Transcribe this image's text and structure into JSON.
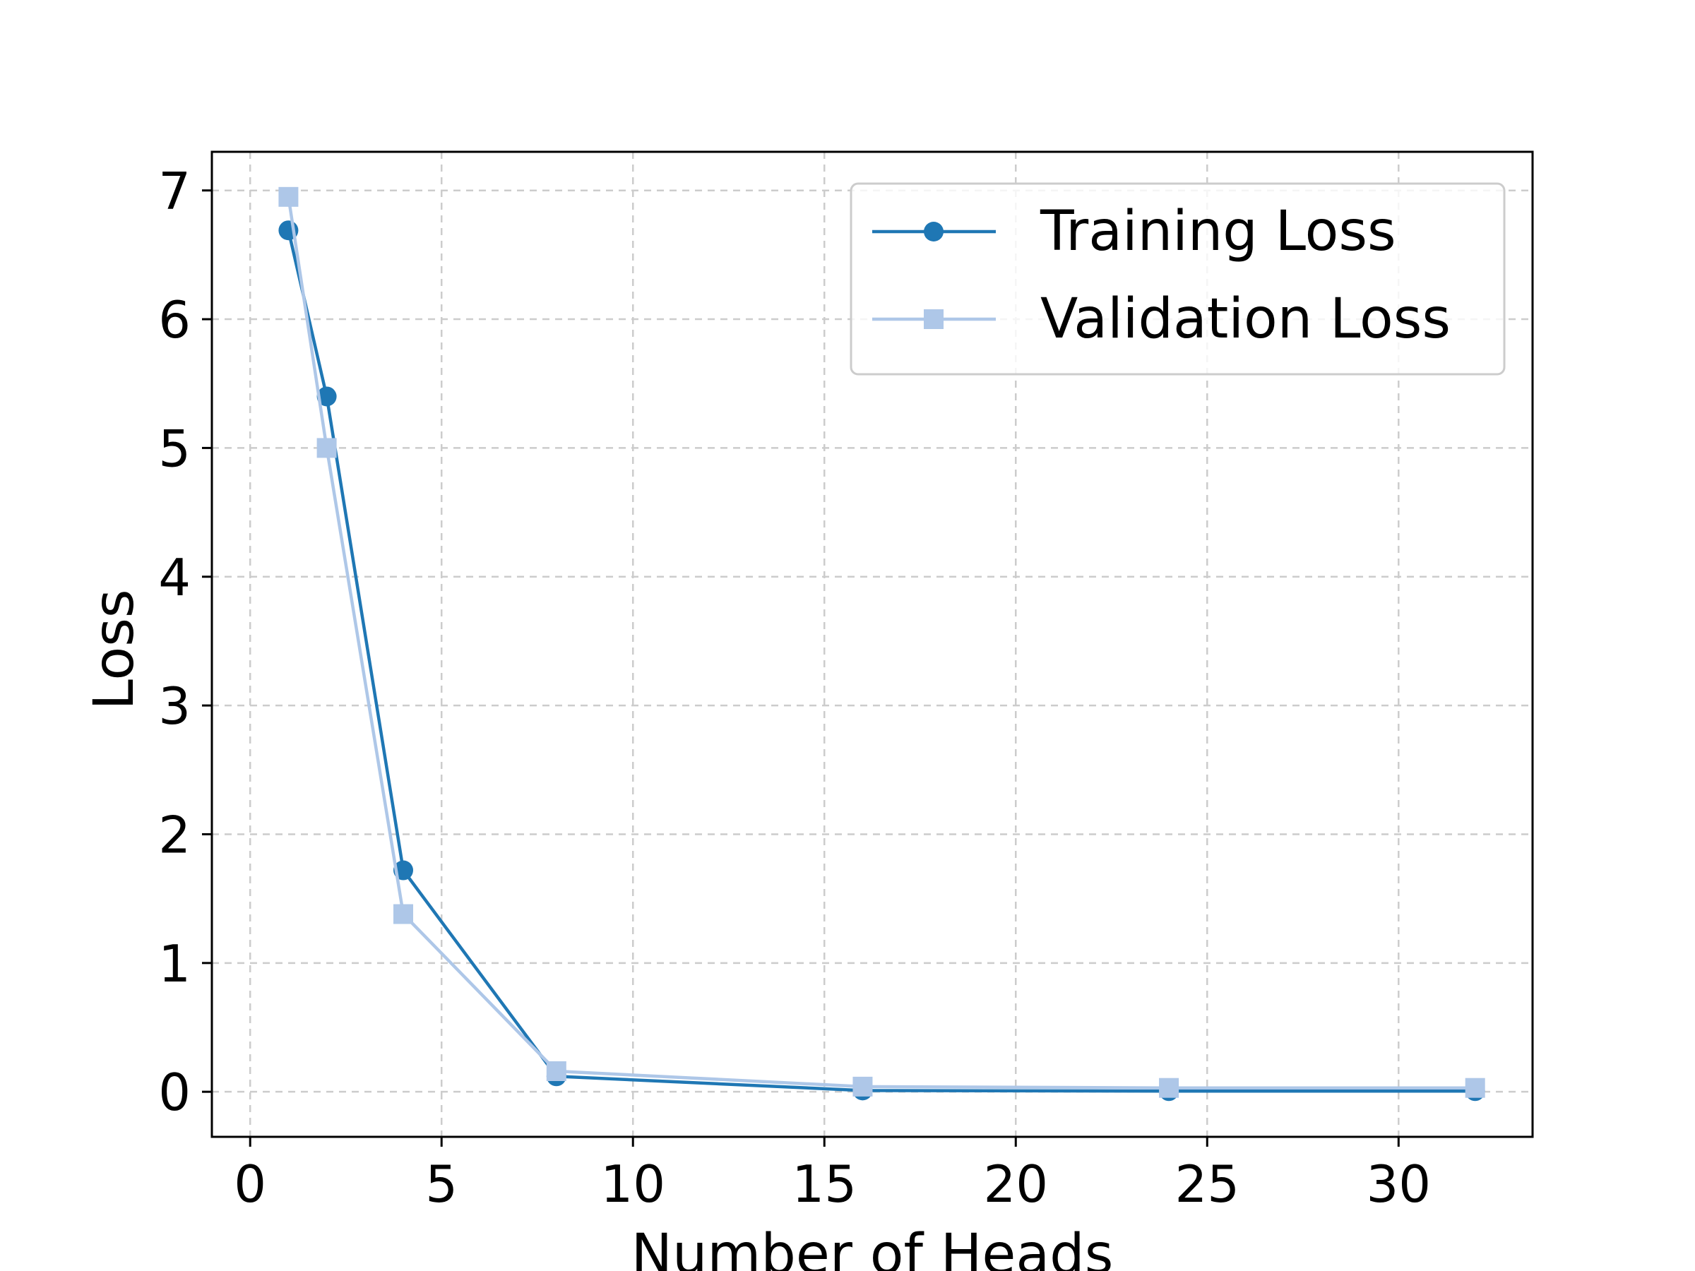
{
  "chart_data": {
    "type": "line",
    "title": "",
    "xlabel": "Number of Heads",
    "ylabel": "Loss",
    "xlim": [
      -1,
      33.5
    ],
    "ylim": [
      -0.35,
      7.3
    ],
    "xticks": [
      0,
      5,
      10,
      15,
      20,
      25,
      30
    ],
    "yticks": [
      0,
      1,
      2,
      3,
      4,
      5,
      6,
      7
    ],
    "grid": true,
    "legend_position": "top-right",
    "x": [
      1,
      2,
      4,
      8,
      16,
      24,
      32
    ],
    "series": [
      {
        "name": "Training Loss",
        "values": [
          6.69,
          5.4,
          1.72,
          0.12,
          0.01,
          0.005,
          0.005
        ],
        "color": "#1f77b4",
        "marker": "circle"
      },
      {
        "name": "Validation Loss",
        "values": [
          6.95,
          5.0,
          1.38,
          0.16,
          0.04,
          0.03,
          0.03
        ],
        "color": "#aec7e8",
        "marker": "square"
      }
    ]
  }
}
